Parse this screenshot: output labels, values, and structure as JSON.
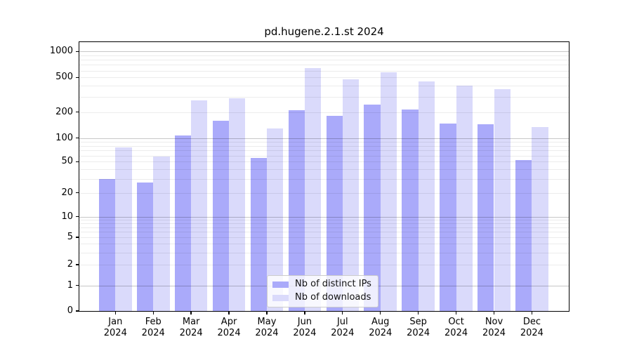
{
  "chart_data": {
    "type": "bar",
    "title": "pd.hugene.2.1.st 2024",
    "categories": [
      "Jan",
      "Feb",
      "Mar",
      "Apr",
      "May",
      "Jun",
      "Jul",
      "Aug",
      "Sep",
      "Oct",
      "Nov",
      "Dec"
    ],
    "x_tick_year": "2024",
    "series": [
      {
        "name": "Nb of distinct IPs",
        "color": "#aaaafa",
        "values": [
          30,
          27,
          107,
          160,
          56,
          210,
          180,
          245,
          215,
          146,
          144,
          52
        ]
      },
      {
        "name": "Nb of downloads",
        "color": "#dadafb",
        "values": [
          76,
          58,
          270,
          290,
          130,
          640,
          480,
          580,
          455,
          400,
          370,
          135
        ]
      }
    ],
    "xlabel": "",
    "ylabel": "",
    "yscale": "log",
    "yticks": [
      0,
      1,
      2,
      5,
      10,
      20,
      50,
      100,
      200,
      500,
      1000
    ],
    "ylim": [
      0,
      1280
    ],
    "grid": "minor log gridlines with darker decade lines, drawn above bars",
    "legend_position": "lower center inside plot"
  }
}
